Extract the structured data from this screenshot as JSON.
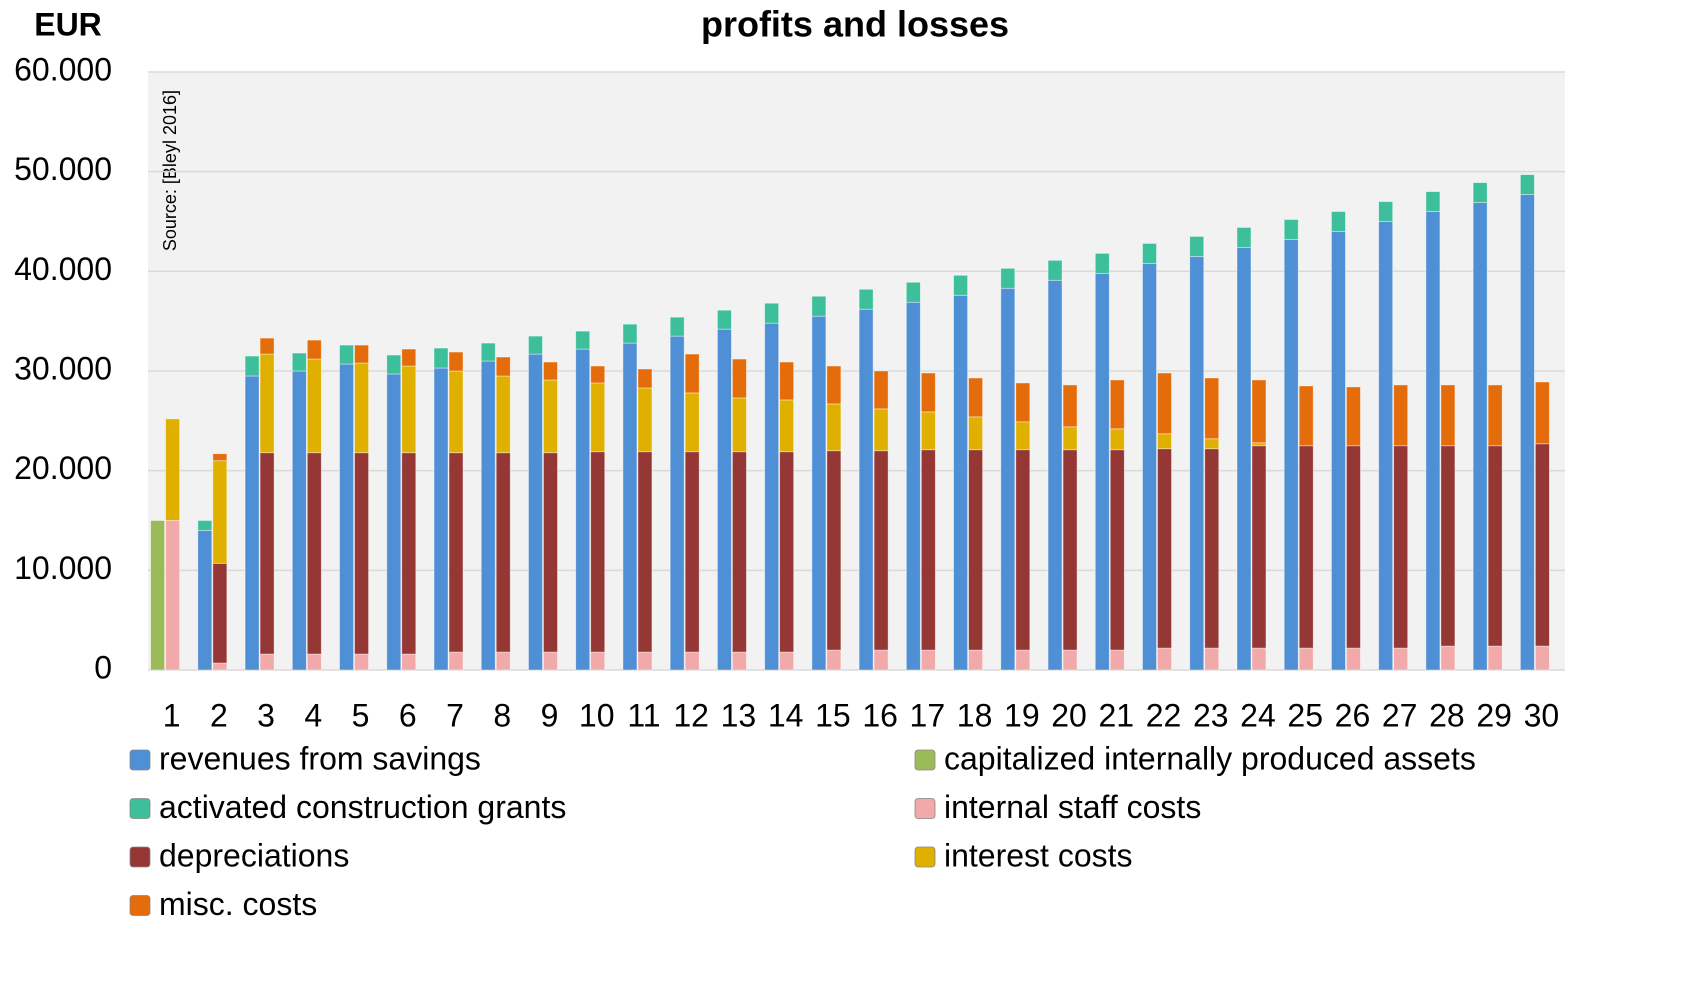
{
  "chart_data": {
    "type": "stacked-grouped-bar",
    "title": "profits and losses",
    "y_label": "EUR",
    "annotation": "Source: [Bleyl 2016]",
    "categories": [
      "1",
      "2",
      "3",
      "4",
      "5",
      "6",
      "7",
      "8",
      "9",
      "10",
      "11",
      "12",
      "13",
      "14",
      "15",
      "16",
      "17",
      "18",
      "19",
      "20",
      "21",
      "22",
      "23",
      "24",
      "25",
      "26",
      "27",
      "28",
      "29",
      "30"
    ],
    "series": [
      {
        "name": "revenues from savings",
        "color": "#4f8fd6",
        "stack": "left",
        "values": [
          0,
          14000,
          29500,
          30000,
          30700,
          29700,
          30300,
          31000,
          31700,
          32200,
          32800,
          33500,
          34200,
          34800,
          35500,
          36200,
          36900,
          37600,
          38300,
          39100,
          39800,
          40800,
          41500,
          42400,
          43200,
          44000,
          45000,
          46000,
          46900,
          47700
        ]
      },
      {
        "name": "capitalized internally produced assets",
        "color": "#9bbb59",
        "stack": "left",
        "values": [
          15000,
          0,
          0,
          0,
          0,
          0,
          0,
          0,
          0,
          0,
          0,
          0,
          0,
          0,
          0,
          0,
          0,
          0,
          0,
          0,
          0,
          0,
          0,
          0,
          0,
          0,
          0,
          0,
          0,
          0
        ]
      },
      {
        "name": "activated construction grants",
        "color": "#3cbf9a",
        "stack": "left",
        "values": [
          0,
          1000,
          2000,
          1800,
          1900,
          1900,
          2000,
          1800,
          1800,
          1800,
          1900,
          1900,
          1900,
          2000,
          2000,
          2000,
          2000,
          2000,
          2000,
          2000,
          2000,
          2000,
          2000,
          2000,
          2000,
          2000,
          2000,
          2000,
          2000,
          2000
        ]
      },
      {
        "name": "internal staff costs",
        "color": "#f2a9a9",
        "stack": "right",
        "values": [
          15000,
          700,
          1600,
          1600,
          1600,
          1600,
          1800,
          1800,
          1800,
          1800,
          1800,
          1800,
          1800,
          1800,
          2000,
          2000,
          2000,
          2000,
          2000,
          2000,
          2000,
          2200,
          2200,
          2200,
          2200,
          2200,
          2200,
          2400,
          2400,
          2400
        ]
      },
      {
        "name": "depreciations",
        "color": "#953735",
        "stack": "right",
        "values": [
          0,
          10000,
          20200,
          20200,
          20200,
          20200,
          20000,
          20000,
          20000,
          20100,
          20100,
          20100,
          20100,
          20100,
          20000,
          20000,
          20100,
          20100,
          20100,
          20100,
          20100,
          20000,
          20000,
          20300,
          20300,
          20300,
          20300,
          20100,
          20100,
          20300
        ]
      },
      {
        "name": "interest costs",
        "color": "#e0b000",
        "stack": "right",
        "values": [
          10200,
          10300,
          9900,
          9400,
          9000,
          8700,
          8200,
          7700,
          7300,
          6900,
          6400,
          5900,
          5400,
          5200,
          4700,
          4200,
          3800,
          3300,
          2800,
          2300,
          2100,
          1500,
          1000,
          300,
          0,
          0,
          0,
          0,
          0,
          0
        ]
      },
      {
        "name": "misc. costs",
        "color": "#e46c0a",
        "stack": "right",
        "values": [
          0,
          700,
          1600,
          1900,
          1800,
          1700,
          1900,
          1900,
          1800,
          1700,
          1900,
          3900,
          3900,
          3800,
          3800,
          3800,
          3900,
          3900,
          3900,
          4200,
          4900,
          6100,
          6100,
          6300,
          6000,
          5900,
          6100,
          6100,
          6100,
          6200
        ]
      }
    ],
    "ylim": [
      0,
      60000
    ],
    "yticks": [
      0,
      {
        "value": 10000,
        "label": "10.000"
      },
      {
        "value": 20000,
        "label": "20.000"
      },
      {
        "value": 30000,
        "label": "30.000"
      },
      {
        "value": 40000,
        "label": "40.000"
      },
      {
        "value": 50000,
        "label": "50.000"
      },
      {
        "value": 60000,
        "label": "60.000"
      }
    ],
    "grid": true
  }
}
